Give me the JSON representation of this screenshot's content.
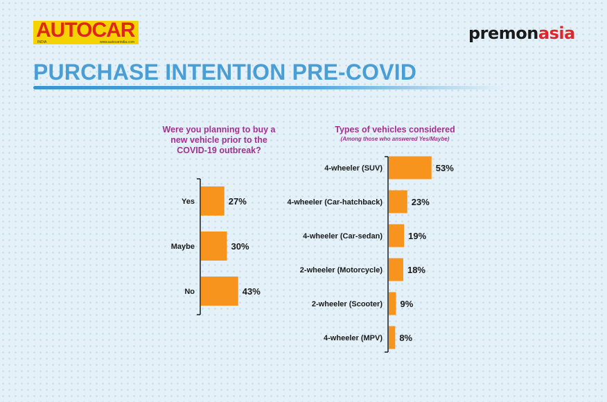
{
  "branding": {
    "autocar": "AUTOCAR",
    "autocar_edition": "INDIA",
    "autocar_url": "www.autocarindia.com",
    "premonasia_part1": "premon",
    "premonasia_part2": "asia"
  },
  "title": "PURCHASE INTENTION PRE-COVID",
  "colors": {
    "bar": "#f7941d",
    "title": "#4a9ed6",
    "question": "#a0328f",
    "accent_red": "#e0262d"
  },
  "chart_data": [
    {
      "type": "bar",
      "orientation": "horizontal",
      "title": "Were you planning to buy a new vehicle prior to the COVID-19 outbreak?",
      "categories": [
        "Yes",
        "Maybe",
        "No"
      ],
      "values": [
        27,
        30,
        43
      ],
      "value_labels": [
        "27%",
        "30%",
        "43%"
      ],
      "unit": "%"
    },
    {
      "type": "bar",
      "orientation": "horizontal",
      "title": "Types of vehicles considered",
      "subtitle": "(Among those who answered Yes/Maybe)",
      "categories": [
        "4-wheeler (SUV)",
        "4-wheeler (Car-hatchback)",
        "4-wheeler (Car-sedan)",
        "2-wheeler (Motorcycle)",
        "2-wheeler (Scooter)",
        "4-wheeler (MPV)"
      ],
      "values": [
        53,
        23,
        19,
        18,
        9,
        8
      ],
      "value_labels": [
        "53%",
        "23%",
        "19%",
        "18%",
        "9%",
        "8%"
      ],
      "unit": "%"
    }
  ]
}
